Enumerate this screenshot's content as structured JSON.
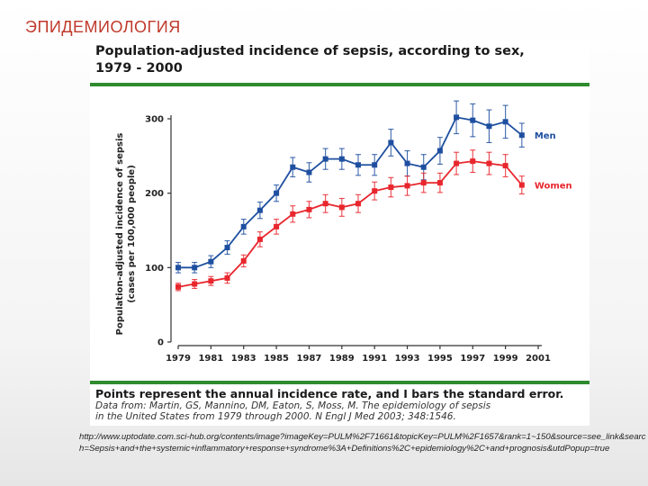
{
  "slide": {
    "title": "ЭПИДЕМИОЛОГИЯ",
    "source_url": "http://www.uptodate.com.sci-hub.org/contents/image?imageKey=PULM%2F71661&topicKey=PULM%2F1657&rank=1~150&source=see_link&search=Sepsis+and+the+systemic+inflammatory+response+syndrome%3A+Definitions%2C+epidemiology%2C+and+prognosis&utdPopup=true"
  },
  "figure": {
    "title_line1": "Population-adjusted incidence of sepsis, according to sex,",
    "title_line2": "1979 - 2000",
    "caption": "Points represent the annual incidence rate, and I bars the standard error.",
    "source_line1": "Data from: Martin, GS, Mannino, DM, Eaton, S, Moss, M. The epidemiology of sepsis",
    "source_line2": "in the United States from 1979 through 2000. N Engl J Med 2003; 348:1546."
  },
  "colors": {
    "men": "#1f4fa0",
    "women": "#e8262d",
    "accent_rule": "#2e8b2e",
    "slide_title": "#c0392b"
  },
  "chart_data": {
    "type": "line",
    "title": "Population-adjusted incidence of sepsis, according to sex, 1979 - 2000",
    "xlabel": "",
    "ylabel_line1": "Population-adjusted incidence of sepsis",
    "ylabel_line2": "(cases per 100,000 people)",
    "xlim": [
      1979,
      2001
    ],
    "ylim": [
      0,
      300
    ],
    "x_ticks": [
      1979,
      1981,
      1983,
      1985,
      1987,
      1989,
      1991,
      1993,
      1995,
      1997,
      1999,
      2001
    ],
    "x_tick_labels": [
      "1979",
      "1981",
      "1983",
      "1985",
      "1987",
      "1989",
      "1991",
      "1993",
      "1995",
      "1997",
      "1999",
      "2001"
    ],
    "y_ticks": [
      0,
      100,
      200,
      300
    ],
    "y_tick_labels": [
      "0",
      "100",
      "200",
      "300"
    ],
    "grid": false,
    "legend": "right, at line ends",
    "x": [
      1979,
      1980,
      1981,
      1982,
      1983,
      1984,
      1985,
      1986,
      1987,
      1988,
      1989,
      1990,
      1991,
      1992,
      1993,
      1994,
      1995,
      1996,
      1997,
      1998,
      1999,
      2000
    ],
    "series": [
      {
        "name": "Men",
        "values": [
          100,
          100,
          108,
          127,
          155,
          177,
          200,
          235,
          228,
          246,
          246,
          238,
          238,
          268,
          240,
          235,
          257,
          302,
          298,
          290,
          296,
          278
        ],
        "errors": [
          7,
          7,
          8,
          9,
          10,
          11,
          11,
          13,
          13,
          14,
          14,
          14,
          14,
          18,
          17,
          17,
          18,
          22,
          22,
          22,
          22,
          16
        ]
      },
      {
        "name": "Women",
        "values": [
          74,
          78,
          82,
          86,
          109,
          138,
          155,
          172,
          178,
          186,
          181,
          186,
          203,
          208,
          210,
          214,
          214,
          240,
          243,
          240,
          237,
          211
        ],
        "errors": [
          5,
          6,
          6,
          7,
          8,
          10,
          10,
          11,
          11,
          12,
          12,
          12,
          12,
          13,
          13,
          13,
          13,
          15,
          15,
          15,
          15,
          12
        ]
      }
    ]
  }
}
